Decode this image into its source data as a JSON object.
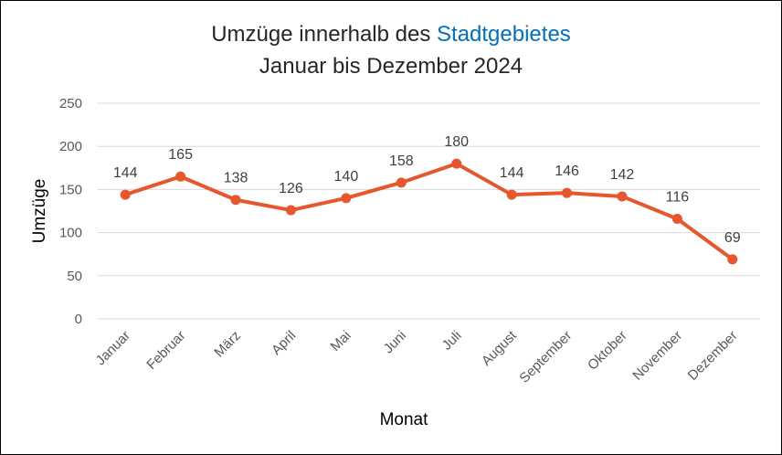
{
  "chart_data": {
    "type": "line",
    "title_part1": "Umzüge innerhalb des",
    "title_accent": "Stadtgebietes",
    "subtitle": "Januar bis Dezember 2024",
    "xlabel": "Monat",
    "ylabel": "Umzüge",
    "ylim": [
      0,
      250
    ],
    "yticks": [
      0,
      50,
      100,
      150,
      200,
      250
    ],
    "grid": true,
    "legend": "none",
    "categories": [
      "Januar",
      "Februar",
      "März",
      "April",
      "Mai",
      "Juni",
      "Juli",
      "August",
      "September",
      "Oktober",
      "November",
      "Dezember"
    ],
    "series": [
      {
        "values": [
          144,
          165,
          138,
          126,
          140,
          158,
          180,
          144,
          146,
          142,
          116,
          69
        ],
        "color": "#e8562b"
      }
    ],
    "accent_color": "#0070c0"
  }
}
